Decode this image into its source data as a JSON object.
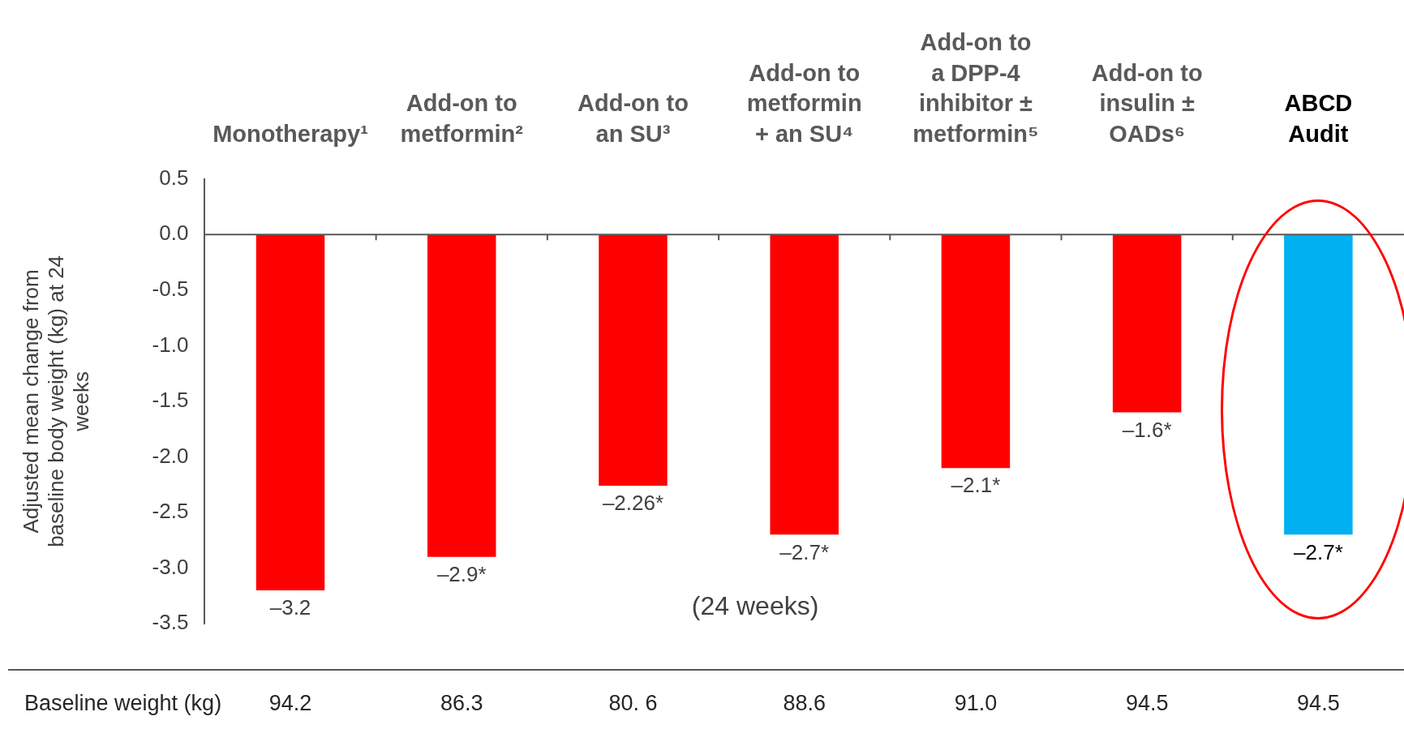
{
  "chart_data": {
    "type": "bar",
    "ylabel": "Adjusted mean change from baseline body weight (kg) at 24 weeks",
    "categories": [
      "Monotherapy¹",
      "Add-on to metformin²",
      "Add-on to an SU³",
      "Add-on to metformin + an SU⁴",
      "Add-on to a DPP-4 inhibitor ± metformin⁵",
      "Add-on to insulin ± OADs⁶",
      "ABCD Audit"
    ],
    "values": [
      -3.2,
      -2.9,
      -2.26,
      -2.7,
      -2.1,
      -1.6,
      -2.7
    ],
    "colors": [
      "#ff0000",
      "#ff0000",
      "#ff0000",
      "#ff0000",
      "#ff0000",
      "#ff0000",
      "#00b0f0"
    ],
    "value_labels": [
      "–3.2",
      "–2.9*",
      "–2.26*",
      "–2.7*",
      "–2.1*",
      "–1.6*",
      "–2.7*"
    ],
    "ylim": [
      -3.5,
      0.5
    ],
    "yticks": [
      {
        "value": 0.5,
        "label": "0.5"
      },
      {
        "value": 0,
        "label": "0.0"
      },
      {
        "value": -0.5,
        "label": "-0.5"
      },
      {
        "value": -1,
        "label": "-1.0"
      },
      {
        "value": -1.5,
        "label": "-1.5"
      },
      {
        "value": -2,
        "label": "-2.0"
      },
      {
        "value": -2.5,
        "label": "-2.5"
      },
      {
        "value": -3,
        "label": "-3.0"
      },
      {
        "value": -3.5,
        "label": "-3.5"
      }
    ],
    "grid": false,
    "ref_lines": [
      {
        "axis": "y",
        "value": 0,
        "color": "#595959"
      }
    ],
    "legend": false,
    "annotations": [
      "(24 weeks)",
      "Baseline weight (kg)",
      "94.2",
      "86.3",
      "80. 6",
      "88.6",
      "91.0",
      "94.5",
      "94.5"
    ]
  }
}
